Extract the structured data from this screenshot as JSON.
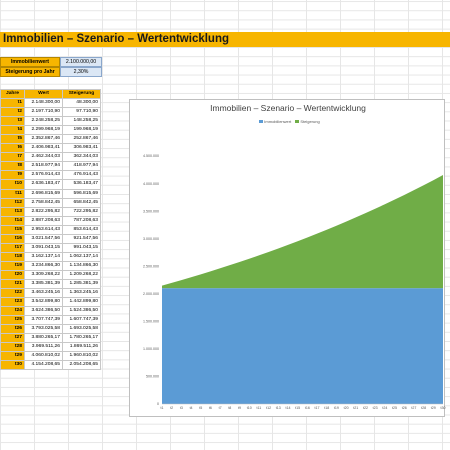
{
  "title": "Immobilien – Szenario – Wertentwicklung",
  "inputs": {
    "immobilienwert_label": "Immobilienwert",
    "immobilienwert_value": "2.100.000,00",
    "steigerung_label": "Steigerung pro Jahr",
    "steigerung_value": "2,30%"
  },
  "table": {
    "headers": [
      "Jahre",
      "Wert",
      "Steigerung"
    ],
    "rows": [
      [
        "t1",
        "2.148.300,00",
        "48.300,00"
      ],
      [
        "t2",
        "2.197.710,90",
        "97.710,90"
      ],
      [
        "t3",
        "2.248.258,25",
        "148.258,25"
      ],
      [
        "t4",
        "2.299.968,19",
        "199.968,19"
      ],
      [
        "t5",
        "2.352.867,46",
        "252.867,46"
      ],
      [
        "t6",
        "2.406.983,41",
        "306.983,41"
      ],
      [
        "t7",
        "2.462.344,03",
        "362.344,03"
      ],
      [
        "t8",
        "2.518.977,94",
        "418.977,94"
      ],
      [
        "t9",
        "2.576.914,43",
        "476.914,43"
      ],
      [
        "t10",
        "2.636.183,47",
        "536.183,47"
      ],
      [
        "t11",
        "2.696.815,69",
        "596.815,69"
      ],
      [
        "t12",
        "2.758.842,45",
        "658.842,45"
      ],
      [
        "t13",
        "2.822.295,82",
        "722.295,82"
      ],
      [
        "t14",
        "2.887.208,63",
        "787.208,63"
      ],
      [
        "t15",
        "2.953.614,43",
        "853.614,43"
      ],
      [
        "t16",
        "3.021.547,56",
        "921.547,56"
      ],
      [
        "t17",
        "3.091.043,15",
        "991.043,15"
      ],
      [
        "t18",
        "3.162.137,14",
        "1.062.137,14"
      ],
      [
        "t19",
        "3.234.866,30",
        "1.134.866,30"
      ],
      [
        "t20",
        "3.309.268,22",
        "1.209.268,22"
      ],
      [
        "t21",
        "3.385.381,39",
        "1.285.381,39"
      ],
      [
        "t22",
        "3.463.245,16",
        "1.363.245,16"
      ],
      [
        "t23",
        "3.542.899,80",
        "1.442.899,80"
      ],
      [
        "t24",
        "3.624.386,50",
        "1.524.386,50"
      ],
      [
        "t25",
        "3.707.747,39",
        "1.607.747,39"
      ],
      [
        "t26",
        "3.793.025,58",
        "1.693.025,58"
      ],
      [
        "t27",
        "3.880.265,17",
        "1.780.265,17"
      ],
      [
        "t28",
        "3.969.511,26",
        "1.869.511,26"
      ],
      [
        "t29",
        "4.060.810,02",
        "1.960.810,02"
      ],
      [
        "t30",
        "4.154.208,65",
        "2.054.208,65"
      ]
    ]
  },
  "chart": {
    "title": "Immobilien – Szenario – Wertentwicklung",
    "legend": [
      "Immobilienwert",
      "Steigerung"
    ],
    "y_ticks": [
      "0",
      "500.000",
      "1.000.000",
      "1.500.000",
      "2.000.000",
      "2.500.000",
      "3.000.000",
      "3.500.000",
      "4.000.000",
      "4.500.000"
    ]
  },
  "chart_data": {
    "type": "area",
    "title": "Immobilien – Szenario – Wertentwicklung",
    "categories": [
      "t1",
      "t2",
      "t3",
      "t4",
      "t5",
      "t6",
      "t7",
      "t8",
      "t9",
      "t10",
      "t11",
      "t12",
      "t13",
      "t14",
      "t15",
      "t16",
      "t17",
      "t18",
      "t19",
      "t20",
      "t21",
      "t22",
      "t23",
      "t24",
      "t25",
      "t26",
      "t27",
      "t28",
      "t29",
      "t30"
    ],
    "series": [
      {
        "name": "Immobilienwert",
        "color": "#5b9bd5",
        "values": [
          2100000,
          2100000,
          2100000,
          2100000,
          2100000,
          2100000,
          2100000,
          2100000,
          2100000,
          2100000,
          2100000,
          2100000,
          2100000,
          2100000,
          2100000,
          2100000,
          2100000,
          2100000,
          2100000,
          2100000,
          2100000,
          2100000,
          2100000,
          2100000,
          2100000,
          2100000,
          2100000,
          2100000,
          2100000,
          2100000
        ]
      },
      {
        "name": "Steigerung",
        "color": "#70ad47",
        "values": [
          48300,
          97710.9,
          148258.25,
          199968.19,
          252867.46,
          306983.41,
          362344.03,
          418977.94,
          476914.43,
          536183.47,
          596815.69,
          658842.45,
          722295.82,
          787208.63,
          853614.43,
          921547.56,
          991043.15,
          1062137.14,
          1134866.3,
          1209268.22,
          1285381.39,
          1363245.16,
          1442899.8,
          1524386.5,
          1607747.39,
          1693025.58,
          1780265.17,
          1869511.26,
          1960810.02,
          2054208.65
        ]
      }
    ],
    "stacked": true,
    "ylim": [
      0,
      4500000
    ],
    "legend_position": "top"
  }
}
